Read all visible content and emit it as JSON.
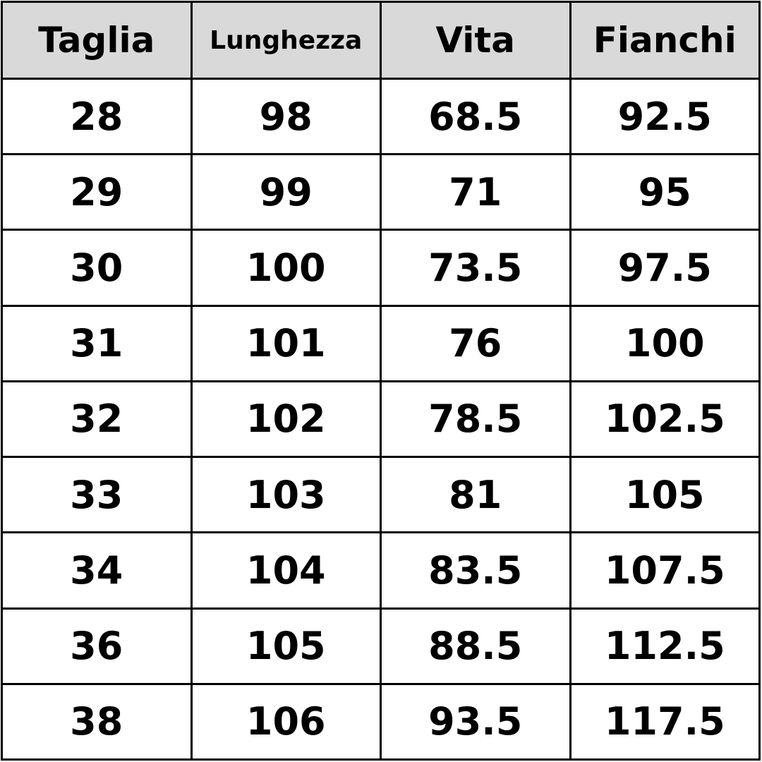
{
  "table": {
    "header": [
      "Taglia",
      "Lunghezza",
      "Vita",
      "Fianchi"
    ],
    "rows": [
      [
        28,
        98,
        68.5,
        92.5
      ],
      [
        29,
        99,
        71,
        95
      ],
      [
        30,
        100,
        73.5,
        97.5
      ],
      [
        31,
        101,
        76,
        100
      ],
      [
        32,
        102,
        78.5,
        102.5
      ],
      [
        33,
        103,
        81,
        105
      ],
      [
        34,
        104,
        83.5,
        107.5
      ],
      [
        36,
        105,
        88.5,
        112.5
      ],
      [
        38,
        106,
        93.5,
        117.5
      ]
    ]
  }
}
